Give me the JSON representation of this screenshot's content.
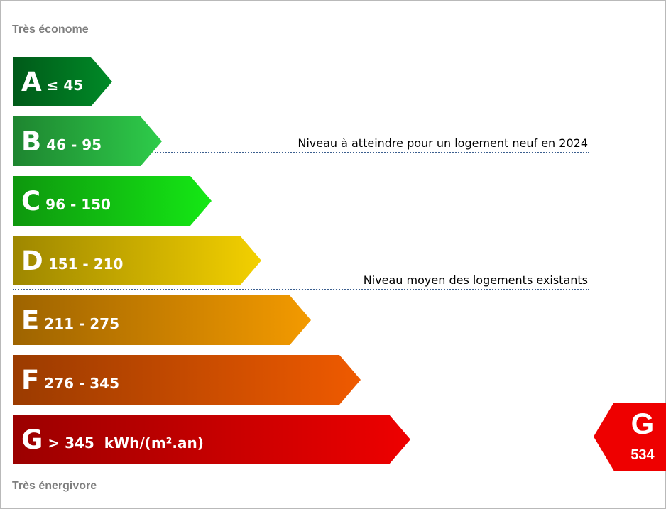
{
  "header": {
    "top_label": "Très économe",
    "bottom_label": "Très énergivore"
  },
  "chart_data": {
    "type": "bar",
    "categories": [
      "A",
      "B",
      "C",
      "D",
      "E",
      "F",
      "G"
    ],
    "ranges": [
      "≤ 45",
      "46 - 95",
      "96 - 150",
      "151 - 210",
      "211 - 275",
      "276 - 345",
      "> 345  kWh/(m².an)"
    ],
    "colors": [
      "#008a27",
      "#2ecc4a",
      "#15e815",
      "#f3d000",
      "#f39a00",
      "#ef5a00",
      "#ee0000"
    ],
    "references": [
      {
        "label": "Niveau à atteindre pour un logement neuf en 2024",
        "class": "B"
      },
      {
        "label": "Niveau moyen des logements existants",
        "class": "D"
      }
    ],
    "result": {
      "class": "G",
      "value": "534",
      "color": "#ee0000"
    }
  }
}
